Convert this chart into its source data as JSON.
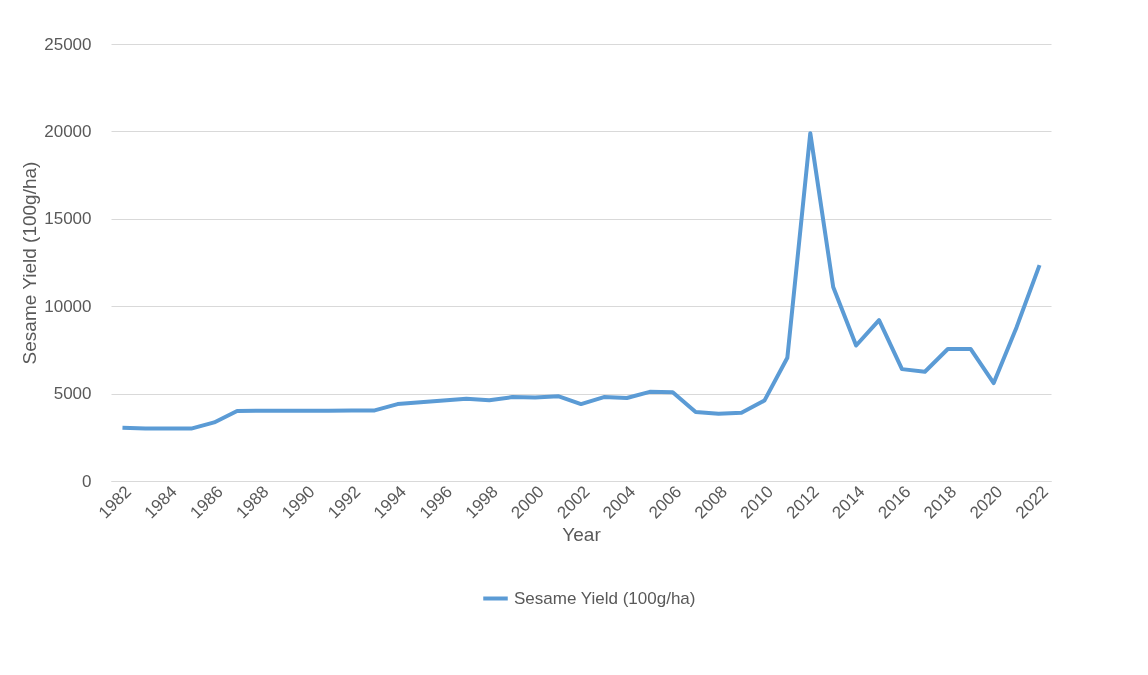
{
  "chart_data": {
    "type": "line",
    "xlabel": "Year",
    "ylabel": "Sesame Yield (100g/ha)",
    "categories": [
      "1982",
      null,
      "1984",
      null,
      "1986",
      null,
      "1988",
      null,
      "1990",
      null,
      "1992",
      null,
      "1994",
      null,
      "1996",
      null,
      "1998",
      null,
      "2000",
      null,
      "2002",
      null,
      "2004",
      null,
      "2006",
      null,
      "2008",
      null,
      "2010",
      null,
      "2012",
      null,
      "2014",
      null,
      "2016",
      null,
      "2018",
      null,
      "2020",
      null,
      "2022"
    ],
    "series": [
      {
        "name": "Sesame Yield (100g/ha)",
        "color": "#5b9bd5",
        "values": [
          3050,
          3000,
          3000,
          3000,
          3350,
          4000,
          4020,
          4020,
          4020,
          4020,
          4030,
          4040,
          4400,
          4500,
          4600,
          4700,
          4620,
          4800,
          4780,
          4850,
          4400,
          4800,
          4750,
          5100,
          5080,
          3950,
          3850,
          3900,
          4600,
          7050,
          19900,
          11100,
          7750,
          9200,
          6400,
          6250,
          7550,
          7550,
          5600,
          8800,
          12350
        ]
      }
    ],
    "ylim": [
      0,
      25000
    ],
    "yticks": [
      0,
      5000,
      10000,
      15000,
      20000,
      25000
    ],
    "grid": "y",
    "legend": "bottom",
    "marker": "none",
    "line_style": "solid"
  }
}
